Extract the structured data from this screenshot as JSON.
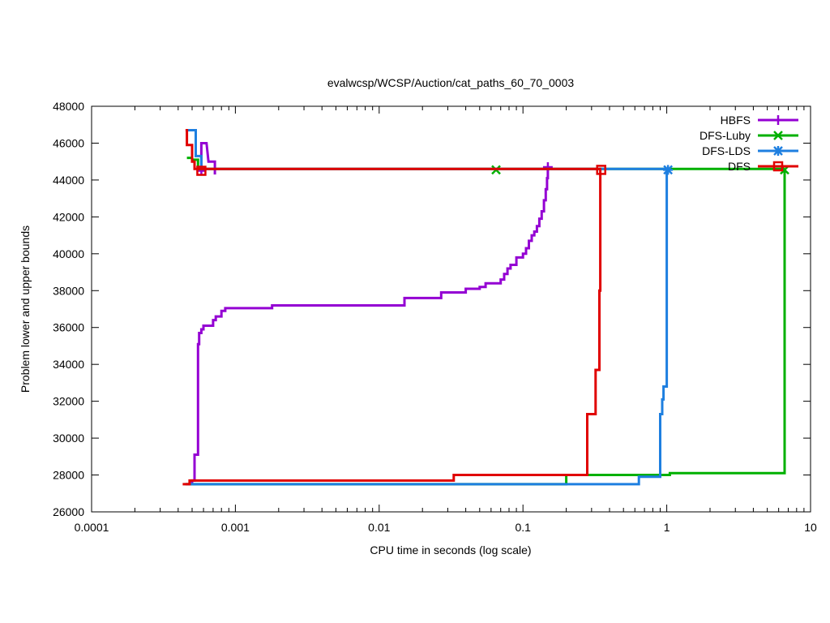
{
  "chart_data": {
    "type": "line",
    "title": "evalwcsp/WCSP/Auction/cat_paths_60_70_0003",
    "xlabel": "CPU time in seconds (log scale)",
    "ylabel": "Problem lower and upper bounds",
    "xscale": "log",
    "xlim": [
      0.0001,
      10
    ],
    "ylim": [
      26000,
      48000
    ],
    "x_ticks": [
      {
        "value": 0.0001,
        "label": "0.0001"
      },
      {
        "value": 0.001,
        "label": "0.001"
      },
      {
        "value": 0.01,
        "label": "0.01"
      },
      {
        "value": 0.1,
        "label": "0.1"
      },
      {
        "value": 1,
        "label": "1"
      },
      {
        "value": 10,
        "label": "10"
      }
    ],
    "y_ticks": [
      {
        "value": 26000,
        "label": "26000"
      },
      {
        "value": 28000,
        "label": "28000"
      },
      {
        "value": 30000,
        "label": "30000"
      },
      {
        "value": 32000,
        "label": "32000"
      },
      {
        "value": 34000,
        "label": "34000"
      },
      {
        "value": 36000,
        "label": "36000"
      },
      {
        "value": 38000,
        "label": "38000"
      },
      {
        "value": 40000,
        "label": "40000"
      },
      {
        "value": 42000,
        "label": "42000"
      },
      {
        "value": 44000,
        "label": "44000"
      },
      {
        "value": 46000,
        "label": "46000"
      },
      {
        "value": 48000,
        "label": "48000"
      }
    ],
    "grid": false,
    "legend_position": "top-right",
    "series": [
      {
        "name": "HBFS",
        "color": "#9400d3",
        "marker": "plus",
        "upper": [
          [
            0.00058,
            44500
          ],
          [
            0.00058,
            46000
          ],
          [
            0.00063,
            46000
          ],
          [
            0.00065,
            45000
          ],
          [
            0.00072,
            45000
          ],
          [
            0.00072,
            44300
          ]
        ],
        "lower": [
          [
            0.0005,
            27500
          ],
          [
            0.0005,
            27700
          ],
          [
            0.00052,
            27700
          ],
          [
            0.00052,
            29100
          ],
          [
            0.00055,
            29100
          ],
          [
            0.00055,
            35100
          ],
          [
            0.00056,
            35100
          ],
          [
            0.00056,
            35700
          ],
          [
            0.00058,
            35700
          ],
          [
            0.00058,
            35900
          ],
          [
            0.0006,
            35900
          ],
          [
            0.0006,
            36100
          ],
          [
            0.0007,
            36100
          ],
          [
            0.0007,
            36400
          ],
          [
            0.00073,
            36400
          ],
          [
            0.00073,
            36600
          ],
          [
            0.0008,
            36600
          ],
          [
            0.0008,
            36900
          ],
          [
            0.00085,
            36900
          ],
          [
            0.00085,
            37050
          ],
          [
            0.0018,
            37050
          ],
          [
            0.0018,
            37200
          ],
          [
            0.015,
            37200
          ],
          [
            0.015,
            37600
          ],
          [
            0.027,
            37600
          ],
          [
            0.027,
            37900
          ],
          [
            0.04,
            37900
          ],
          [
            0.04,
            38100
          ],
          [
            0.05,
            38100
          ],
          [
            0.05,
            38200
          ],
          [
            0.055,
            38200
          ],
          [
            0.055,
            38400
          ],
          [
            0.07,
            38400
          ],
          [
            0.07,
            38600
          ],
          [
            0.074,
            38600
          ],
          [
            0.074,
            38900
          ],
          [
            0.078,
            38900
          ],
          [
            0.078,
            39200
          ],
          [
            0.082,
            39200
          ],
          [
            0.082,
            39400
          ],
          [
            0.09,
            39400
          ],
          [
            0.09,
            39800
          ],
          [
            0.1,
            39800
          ],
          [
            0.1,
            40000
          ],
          [
            0.105,
            40000
          ],
          [
            0.105,
            40300
          ],
          [
            0.11,
            40300
          ],
          [
            0.11,
            40700
          ],
          [
            0.115,
            40700
          ],
          [
            0.115,
            41000
          ],
          [
            0.12,
            41000
          ],
          [
            0.12,
            41200
          ],
          [
            0.125,
            41200
          ],
          [
            0.125,
            41500
          ],
          [
            0.13,
            41500
          ],
          [
            0.13,
            41900
          ],
          [
            0.135,
            41900
          ],
          [
            0.135,
            42300
          ],
          [
            0.14,
            42300
          ],
          [
            0.14,
            42900
          ],
          [
            0.144,
            42900
          ],
          [
            0.144,
            43500
          ],
          [
            0.147,
            43500
          ],
          [
            0.147,
            44100
          ],
          [
            0.149,
            44100
          ],
          [
            0.149,
            44700
          ]
        ],
        "markers": [
          [
            0.00058,
            44500
          ],
          [
            0.149,
            44700
          ]
        ]
      },
      {
        "name": "DFS-Luby",
        "color": "#00b000",
        "marker": "x",
        "upper": [
          [
            0.00046,
            45200
          ],
          [
            0.0005,
            45200
          ],
          [
            0.0005,
            45100
          ],
          [
            0.00055,
            45100
          ],
          [
            0.00055,
            44600
          ],
          [
            6.6,
            44600
          ]
        ],
        "lower": [
          [
            0.00045,
            27500
          ],
          [
            0.2,
            27500
          ],
          [
            0.2,
            28000
          ],
          [
            1.05,
            28000
          ],
          [
            1.05,
            28100
          ],
          [
            6.6,
            28100
          ],
          [
            6.6,
            44600
          ]
        ],
        "markers": [
          [
            0.065,
            44550
          ],
          [
            6.6,
            44550
          ]
        ]
      },
      {
        "name": "DFS-LDS",
        "color": "#1e7fe0",
        "marker": "star",
        "upper": [
          [
            0.00046,
            46700
          ],
          [
            0.00053,
            46700
          ],
          [
            0.00053,
            45300
          ],
          [
            0.00058,
            45300
          ],
          [
            0.00058,
            44600
          ],
          [
            1.02,
            44600
          ]
        ],
        "lower": [
          [
            0.00045,
            27500
          ],
          [
            0.64,
            27500
          ],
          [
            0.64,
            27900
          ],
          [
            0.9,
            27900
          ],
          [
            0.9,
            31300
          ],
          [
            0.93,
            31300
          ],
          [
            0.93,
            32100
          ],
          [
            0.95,
            32100
          ],
          [
            0.95,
            32800
          ],
          [
            1.0,
            32800
          ],
          [
            1.0,
            44600
          ],
          [
            1.02,
            44600
          ]
        ],
        "markers": [
          [
            1.02,
            44550
          ]
        ]
      },
      {
        "name": "DFS",
        "color": "#e00000",
        "marker": "box",
        "upper": [
          [
            0.00045,
            46700
          ],
          [
            0.00046,
            46700
          ],
          [
            0.00046,
            45900
          ],
          [
            0.0005,
            45900
          ],
          [
            0.0005,
            45000
          ],
          [
            0.00052,
            45000
          ],
          [
            0.00052,
            44600
          ],
          [
            0.35,
            44600
          ]
        ],
        "lower": [
          [
            0.00043,
            27500
          ],
          [
            0.00048,
            27500
          ],
          [
            0.00048,
            27700
          ],
          [
            0.033,
            27700
          ],
          [
            0.033,
            28000
          ],
          [
            0.28,
            28000
          ],
          [
            0.28,
            31300
          ],
          [
            0.32,
            31300
          ],
          [
            0.32,
            33700
          ],
          [
            0.34,
            33700
          ],
          [
            0.34,
            38000
          ],
          [
            0.345,
            38000
          ],
          [
            0.345,
            44600
          ],
          [
            0.35,
            44600
          ]
        ],
        "markers": [
          [
            0.00058,
            44500
          ],
          [
            0.35,
            44550
          ]
        ]
      }
    ]
  }
}
